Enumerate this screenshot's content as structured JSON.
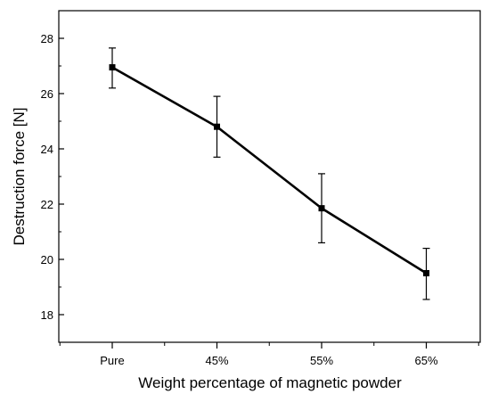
{
  "chart_data": {
    "type": "line",
    "title": "",
    "xlabel": "Weight percentage of magnetic powder",
    "ylabel": "Destruction force [N]",
    "categories": [
      "Pure",
      "45%",
      "55%",
      "65%"
    ],
    "ylim": [
      17,
      29
    ],
    "yticks": [
      18,
      20,
      22,
      24,
      26,
      28
    ],
    "ytick_labels": [
      "18",
      "20",
      "22",
      "24",
      "26",
      "28"
    ],
    "grid": false,
    "legend": "none",
    "series": [
      {
        "values": [
          26.95,
          24.8,
          21.85,
          19.5
        ],
        "error_low": [
          26.2,
          23.7,
          20.6,
          18.55
        ],
        "error_high": [
          27.65,
          25.9,
          23.1,
          20.4
        ],
        "color": "#000000",
        "marker": "square"
      }
    ]
  }
}
